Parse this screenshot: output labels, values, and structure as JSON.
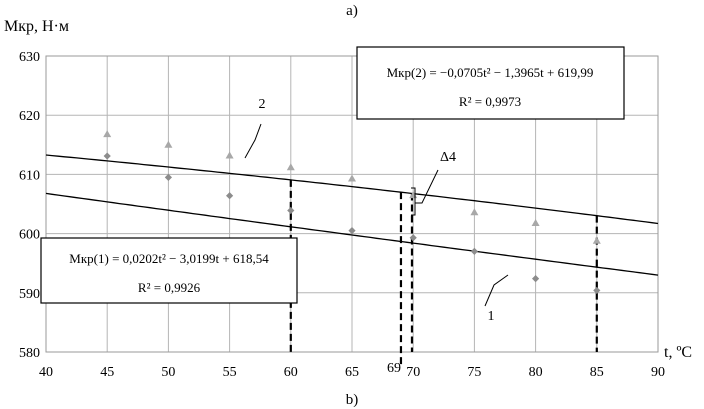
{
  "captions": {
    "top": "a)",
    "bottom": "b)"
  },
  "chart_data": {
    "type": "scatter",
    "ylabel": "Мкр, Н·м",
    "xlabel": "t, ºC",
    "xlim": [
      40,
      90
    ],
    "ylim": [
      580,
      630
    ],
    "xticks": [
      "40",
      "45",
      "50",
      "55",
      "60",
      "65",
      "70",
      "75",
      "80",
      "85",
      "90"
    ],
    "yticks": [
      "580",
      "590",
      "600",
      "610",
      "620",
      "630"
    ],
    "grid": true,
    "series": [
      {
        "callout": "1",
        "marker": "diamond",
        "color": "#8c8c8c",
        "x": [
          45,
          50,
          55,
          60,
          65,
          70,
          75,
          80,
          85
        ],
        "y": [
          613.1,
          609.5,
          606.4,
          603.9,
          600.5,
          599.3,
          597.0,
          592.4,
          590.4
        ],
        "fit": {
          "a": 0.0202,
          "b": -3.0199,
          "c": 618.54
        },
        "equation": "Мкр(1) = 0,0202t² − 3,0199t + 618,54",
        "r2": "R² = 0,9926"
      },
      {
        "callout": "2",
        "marker": "triangle",
        "color": "#a8a8a8",
        "x": [
          45,
          50,
          55,
          60,
          65,
          70,
          75,
          80,
          85
        ],
        "y": [
          616.8,
          615.0,
          613.2,
          611.2,
          609.3,
          606.5,
          603.6,
          601.8,
          598.8
        ],
        "fit": {
          "a": -0.0705,
          "b": -1.3965,
          "c": 619.99
        },
        "equation": "Мкр(2) = −0,0705t² − 1,3965t + 619,99",
        "r2": "R² = 0,9973"
      }
    ],
    "vertical_markers": [
      60,
      69,
      85
    ],
    "annotations": {
      "delta": "Δ4",
      "marker_label": "69"
    }
  }
}
